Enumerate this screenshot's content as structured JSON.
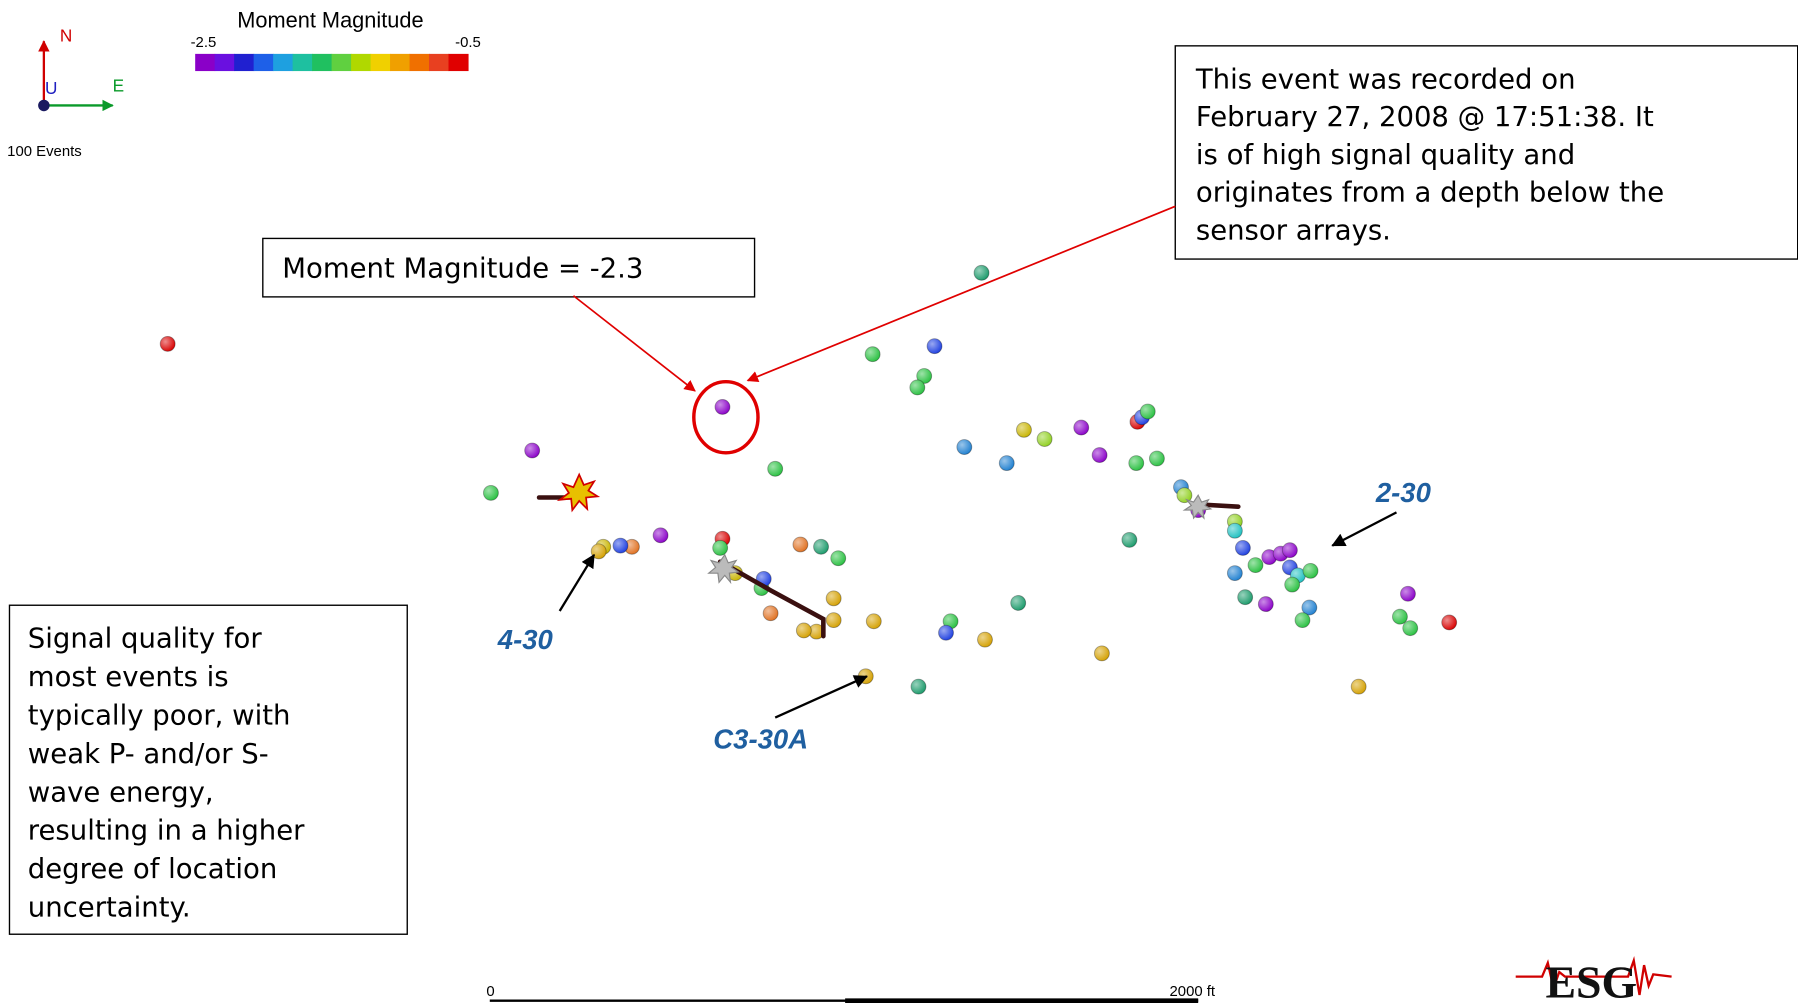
{
  "legend": {
    "title": "Moment Magnitude",
    "min": "-2.5",
    "max": "-0.5"
  },
  "compass": {
    "north": "N",
    "east": "E",
    "up": "U"
  },
  "event_count": "100 Events",
  "callouts": {
    "event_info": [
      "This event was recorded on",
      "February 27, 2008 @ 17:51:38. It",
      "is of high signal quality and",
      "originates from a depth below the",
      "sensor arrays."
    ],
    "magnitude": "Moment Magnitude = -2.3",
    "signal_quality": [
      "Signal quality for",
      "most events is",
      "typically poor, with",
      "weak P- and/or S-",
      "wave energy,",
      "resulting in a higher",
      "degree of location",
      "uncertainty."
    ]
  },
  "wells": [
    "4-30",
    "C3-30A",
    "2-30"
  ],
  "scale_bar": {
    "start": "0",
    "end": "2000 ft"
  },
  "logo": "ESG"
}
